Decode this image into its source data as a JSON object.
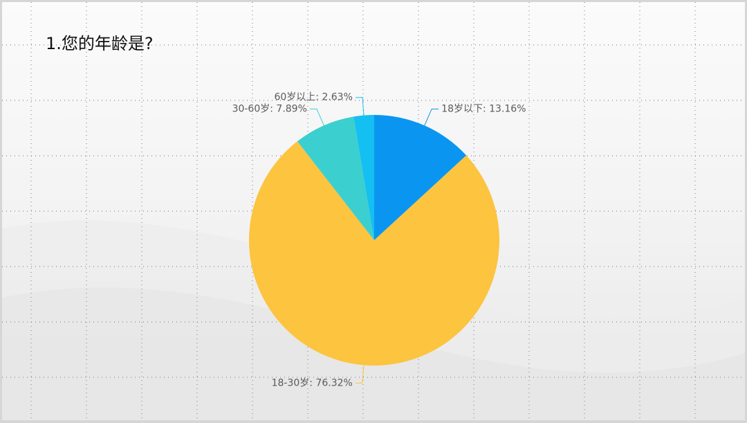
{
  "chart_data": {
    "type": "pie",
    "title": "1.您的年龄是?",
    "values": [
      13.16,
      76.32,
      7.89,
      2.63
    ],
    "value_labels": [
      "18岁以下: 13.16%",
      "18-30岁: 76.32%",
      "30-60岁: 7.89%",
      "60岁以上: 2.63%"
    ],
    "colors": [
      "#0a96f0",
      "#fcc43f",
      "#3ccfcf",
      "#14bff2"
    ]
  }
}
